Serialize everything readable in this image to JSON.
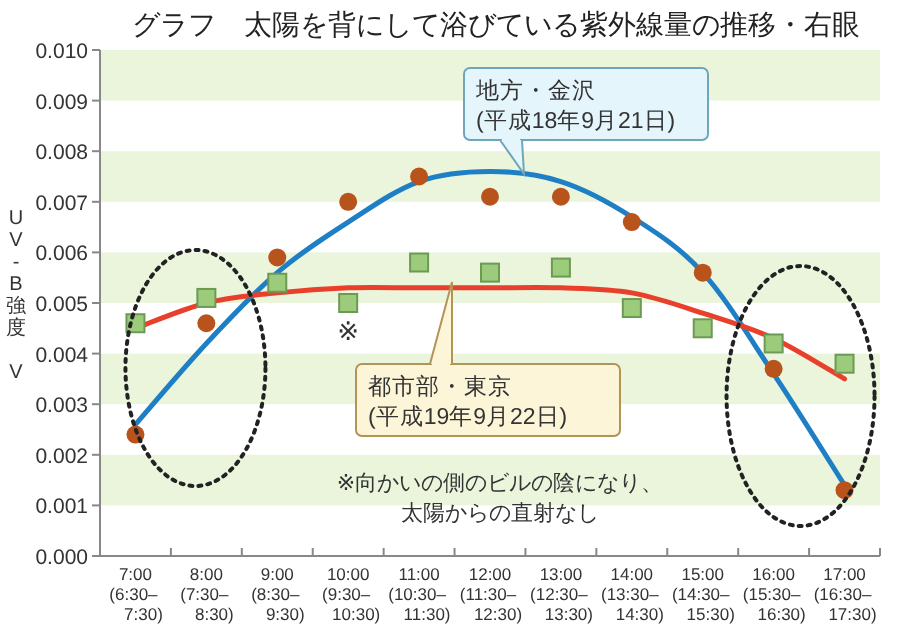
{
  "chart_data": {
    "type": "scatter",
    "title": "グラフ　太陽を背にして浴びている紫外線量の推移・右眼",
    "ylabel": "UV-B強度 V",
    "categories": [
      "7:00\n(6:30–\n7:30)",
      "8:00\n(7:30–\n8:30)",
      "9:00\n(8:30–\n9:30)",
      "10:00\n(9:30–\n10:30)",
      "11:00\n(10:30–\n11:30)",
      "12:00\n(11:30–\n12:30)",
      "13:00\n(12:30–\n13:30)",
      "14:00\n(13:30–\n14:30)",
      "15:00\n(14:30–\n15:30)",
      "16:00\n(15:30–\n16:30)",
      "17:00\n(16:30–\n17:30)"
    ],
    "ylim": [
      0,
      0.01
    ],
    "yticks": [
      {
        "value": 0,
        "label": "0.000"
      },
      {
        "value": 0.001,
        "label": "0.001"
      },
      {
        "value": 0.002,
        "label": "0.002"
      },
      {
        "value": 0.003,
        "label": "0.003"
      },
      {
        "value": 0.004,
        "label": "0.004"
      },
      {
        "value": 0.005,
        "label": "0.005"
      },
      {
        "value": 0.006,
        "label": "0.006"
      },
      {
        "value": 0.007,
        "label": "0.007"
      },
      {
        "value": 0.008,
        "label": "0.008"
      },
      {
        "value": 0.009,
        "label": "0.009"
      },
      {
        "value": 0.01,
        "label": "0.010"
      }
    ],
    "grid": false,
    "bands": [
      {
        "axis": "y",
        "from": 0.009,
        "to": 0.01,
        "color": "#eaf5dc"
      },
      {
        "axis": "y",
        "from": 0.007,
        "to": 0.008,
        "color": "#eaf5dc"
      },
      {
        "axis": "y",
        "from": 0.005,
        "to": 0.006,
        "color": "#eaf5dc"
      },
      {
        "axis": "y",
        "from": 0.003,
        "to": 0.004,
        "color": "#eaf5dc"
      },
      {
        "axis": "y",
        "from": 0.001,
        "to": 0.002,
        "color": "#eaf5dc"
      }
    ],
    "series": [
      {
        "type": "line",
        "line_style": "solid",
        "color": "#1f7fc4",
        "values": [
          0.0026,
          0.0042,
          0.0056,
          0.0066,
          0.0074,
          0.0076,
          0.0074,
          0.0067,
          0.0056,
          0.0036,
          0.0014
        ]
      },
      {
        "type": "line",
        "line_style": "solid",
        "color": "#e8402a",
        "values": [
          0.0045,
          0.005,
          0.0052,
          0.0053,
          0.0053,
          0.0053,
          0.0053,
          0.0052,
          0.0048,
          0.0043,
          0.0035
        ]
      },
      {
        "type": "scatter",
        "marker": "circle",
        "color": "#b9531c",
        "values": [
          0.0024,
          0.0046,
          0.0059,
          0.007,
          0.0075,
          0.0071,
          0.0071,
          0.0066,
          0.0056,
          0.0037,
          0.0013
        ]
      },
      {
        "type": "scatter",
        "marker": "square",
        "color": "#9ccb7c",
        "values": [
          0.0046,
          0.0051,
          0.0054,
          0.005,
          0.0058,
          0.0056,
          0.0057,
          0.0049,
          0.0045,
          0.0042,
          0.0038
        ]
      }
    ],
    "annotations": [
      "地方・金沢",
      "(平成18年9月21日)",
      "都市部・東京",
      "(平成19年9月22日)",
      "※",
      "※向かいの側のビルの陰になり、",
      "太陽からの直射なし"
    ]
  }
}
